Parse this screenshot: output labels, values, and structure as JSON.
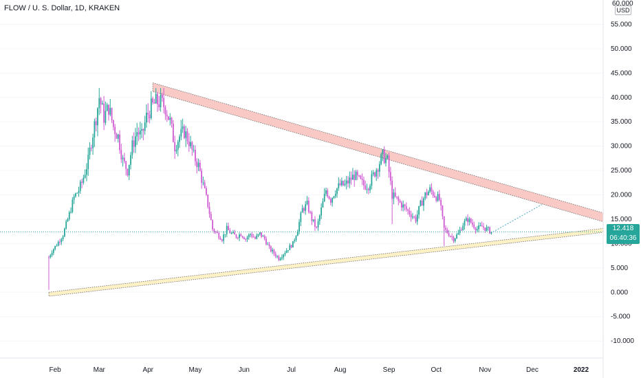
{
  "header": {
    "title": "FLOW / U. S. Dollar, 1D, KRAKEN"
  },
  "axis": {
    "unit": "USD",
    "top_partial_label": "60.000"
  },
  "last_price": {
    "value": "12.418",
    "countdown": "06:40:36"
  },
  "colors": {
    "up": "#26a69a",
    "down": "#d05ad1",
    "resistance_fill": "#f9c9c5",
    "support_fill": "#fff1c6",
    "price_line": "#26a69a",
    "projection": "#4ea4c2"
  },
  "chart_data": {
    "type": "candlestick",
    "title": "FLOW / U. S. Dollar, 1D, KRAKEN",
    "ylabel": "USD",
    "ylim": [
      -13.5,
      60
    ],
    "y_ticks": [
      "55.000",
      "50.000",
      "45.000",
      "40.000",
      "35.000",
      "30.000",
      "25.000",
      "20.000",
      "15.000",
      "10.000",
      "5.000",
      "0.000",
      "-5.000",
      "-10.000"
    ],
    "y_tick_values": [
      55,
      50,
      45,
      40,
      35,
      30,
      25,
      20,
      15,
      10,
      5,
      0,
      -5,
      -10
    ],
    "x_ticks": [
      "Feb",
      "Mar",
      "Apr",
      "May",
      "Jun",
      "Jul",
      "Aug",
      "Sep",
      "Oct",
      "Nov",
      "Dec",
      "2022"
    ],
    "x_tick_days": [
      31,
      59,
      90,
      120,
      151,
      181,
      212,
      243,
      273,
      304,
      334,
      365
    ],
    "xlim_days": [
      -4,
      379
    ],
    "series_close": [
      [
        27,
        7.2
      ],
      [
        29,
        8.5
      ],
      [
        32,
        9.8
      ],
      [
        36,
        11.8
      ],
      [
        40,
        16
      ],
      [
        43,
        19.5
      ],
      [
        46,
        21
      ],
      [
        48,
        22.5
      ],
      [
        52,
        27
      ],
      [
        54,
        31
      ],
      [
        57,
        36
      ],
      [
        59,
        40
      ],
      [
        62,
        36
      ],
      [
        65,
        38
      ],
      [
        68,
        34
      ],
      [
        71,
        32
      ],
      [
        74,
        27
      ],
      [
        77,
        25
      ],
      [
        80,
        30
      ],
      [
        83,
        33
      ],
      [
        86,
        32
      ],
      [
        89,
        36
      ],
      [
        92,
        38
      ],
      [
        95,
        39
      ],
      [
        98,
        39
      ],
      [
        101,
        38
      ],
      [
        104,
        35
      ],
      [
        107,
        30
      ],
      [
        110,
        32
      ],
      [
        113,
        33
      ],
      [
        116,
        31
      ],
      [
        119,
        28
      ],
      [
        122,
        26
      ],
      [
        125,
        22
      ],
      [
        128,
        18
      ],
      [
        131,
        13
      ],
      [
        134,
        12
      ],
      [
        137,
        11
      ],
      [
        140,
        13
      ],
      [
        143,
        12
      ],
      [
        146,
        11.5
      ],
      [
        149,
        12
      ],
      [
        152,
        11
      ],
      [
        155,
        12
      ],
      [
        158,
        11
      ],
      [
        161,
        12
      ],
      [
        164,
        11
      ],
      [
        167,
        9
      ],
      [
        170,
        8
      ],
      [
        173,
        7
      ],
      [
        176,
        8
      ],
      [
        179,
        9
      ],
      [
        182,
        10
      ],
      [
        185,
        13
      ],
      [
        188,
        17
      ],
      [
        191,
        18
      ],
      [
        194,
        15
      ],
      [
        197,
        13
      ],
      [
        200,
        17
      ],
      [
        203,
        21
      ],
      [
        206,
        19
      ],
      [
        209,
        21
      ],
      [
        212,
        22
      ],
      [
        215,
        22
      ],
      [
        218,
        23
      ],
      [
        221,
        24
      ],
      [
        224,
        23
      ],
      [
        227,
        22
      ],
      [
        230,
        22
      ],
      [
        233,
        24
      ],
      [
        236,
        26
      ],
      [
        239,
        28
      ],
      [
        242,
        27
      ],
      [
        245,
        20
      ],
      [
        248,
        19
      ],
      [
        251,
        18
      ],
      [
        254,
        17
      ],
      [
        257,
        16
      ],
      [
        260,
        15
      ],
      [
        263,
        18
      ],
      [
        266,
        20
      ],
      [
        269,
        21
      ],
      [
        272,
        20
      ],
      [
        275,
        19
      ],
      [
        278,
        13
      ],
      [
        281,
        12
      ],
      [
        284,
        11
      ],
      [
        287,
        12
      ],
      [
        290,
        14
      ],
      [
        293,
        15
      ],
      [
        296,
        14
      ],
      [
        299,
        13
      ],
      [
        302,
        13.5
      ],
      [
        305,
        13
      ],
      [
        308,
        12.4
      ]
    ],
    "major_lows": [
      [
        27,
        0.5
      ],
      [
        245,
        14
      ],
      [
        278,
        9.5
      ]
    ],
    "resistance_line": {
      "from": [
        93,
        43
      ],
      "to": [
        379,
        16.3
      ],
      "width": 1.8
    },
    "support_line": {
      "from": [
        27,
        0
      ],
      "to": [
        379,
        13.1
      ],
      "width": 0.8
    },
    "projection": {
      "from": [
        309,
        12.4
      ],
      "to": [
        340,
        18
      ]
    },
    "last_price": 12.418
  }
}
